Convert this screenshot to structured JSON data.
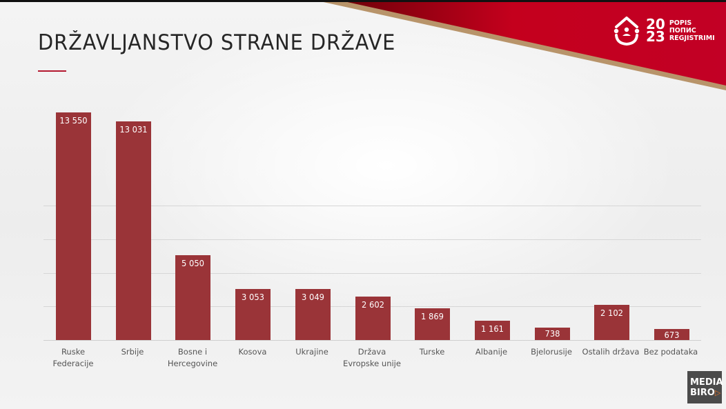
{
  "slide": {
    "title": "DRŽAVLJANSTVO STRANE DRŽAVE",
    "accent_color": "#b3172f",
    "bar_color": "#9a3438"
  },
  "logo": {
    "icon": "house-people-icon",
    "year_top": "20",
    "year_bottom": "23",
    "word1": "POPIS",
    "word2": "ПОПИС",
    "word3": "REGJISTRIMI"
  },
  "watermark": {
    "line1": "MEDIA",
    "line2": "BIRO",
    "icon": "play-triangle-icon"
  },
  "chart_data": {
    "type": "bar",
    "title": "DRŽAVLJANSTVO STRANE DRŽAVE",
    "xlabel": "",
    "ylabel": "",
    "categories": [
      "Ruske Federacije",
      "Srbije",
      "Bosne i Hercegovine",
      "Kosova",
      "Ukrajine",
      "Država Evropske unije",
      "Turske",
      "Albanije",
      "Bjelorusije",
      "Ostalih država",
      "Bez podataka"
    ],
    "values": [
      13550,
      13031,
      5050,
      3053,
      3049,
      2602,
      1869,
      1161,
      738,
      2102,
      673
    ],
    "value_labels": [
      "13 550",
      "13 031",
      "5 050",
      "3 053",
      "3 049",
      "2 602",
      "1 869",
      "1 161",
      "738",
      "2 102",
      "673"
    ],
    "ylim": [
      0,
      14000
    ],
    "gridlines": [
      2000,
      4000,
      6000,
      8000
    ],
    "grid": true,
    "legend": "none",
    "y_axis_labels_visible": false
  },
  "labels": {
    "c0a": "Ruske",
    "c0b": "Federacije",
    "c1a": "Srbije",
    "c2a": "Bosne i",
    "c2b": "Hercegovine",
    "c3a": "Kosova",
    "c4a": "Ukrajine",
    "c5a": "Država",
    "c5b": "Evropske unije",
    "c6a": "Turske",
    "c7a": "Albanije",
    "c8a": "Bjelorusije",
    "c9a": "Ostalih država",
    "c10a": "Bez podataka"
  }
}
